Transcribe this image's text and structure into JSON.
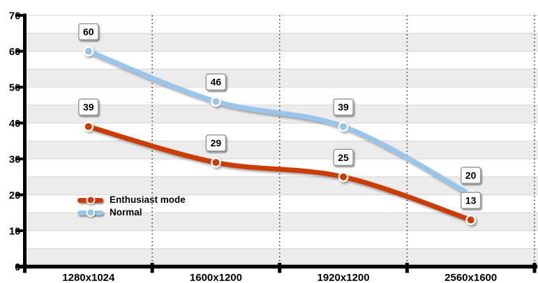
{
  "chart_data": {
    "type": "line",
    "categories": [
      "1280x1024",
      "1600x1200",
      "1920x1200",
      "2560x1600"
    ],
    "series": [
      {
        "name": "Enthusiast mode",
        "values": [
          39,
          29,
          25,
          13
        ],
        "color": "#cc3a05"
      },
      {
        "name": "Normal",
        "values": [
          60,
          46,
          39,
          20
        ],
        "color": "#9ac5eb"
      }
    ],
    "title": "",
    "xlabel": "",
    "ylabel": "",
    "ylim": [
      0,
      70
    ],
    "yticks": [
      0,
      10,
      20,
      30,
      40,
      50,
      60,
      70
    ],
    "band_step": 5,
    "grid": true,
    "data_labels": true,
    "legend_position": "bottom-left",
    "line_style": "smooth"
  },
  "colors": {
    "background": "#ffffff",
    "band_gray": "#ececec",
    "band_white": "#ffffff",
    "gridline": "#d4d4d4",
    "dotted_gridline": "#3f3f3f",
    "axis": "#000000",
    "tick_text": "#000000",
    "label_box_bg": "#ffffff",
    "label_box_border": "#9a9a9a",
    "label_text": "#000000"
  }
}
